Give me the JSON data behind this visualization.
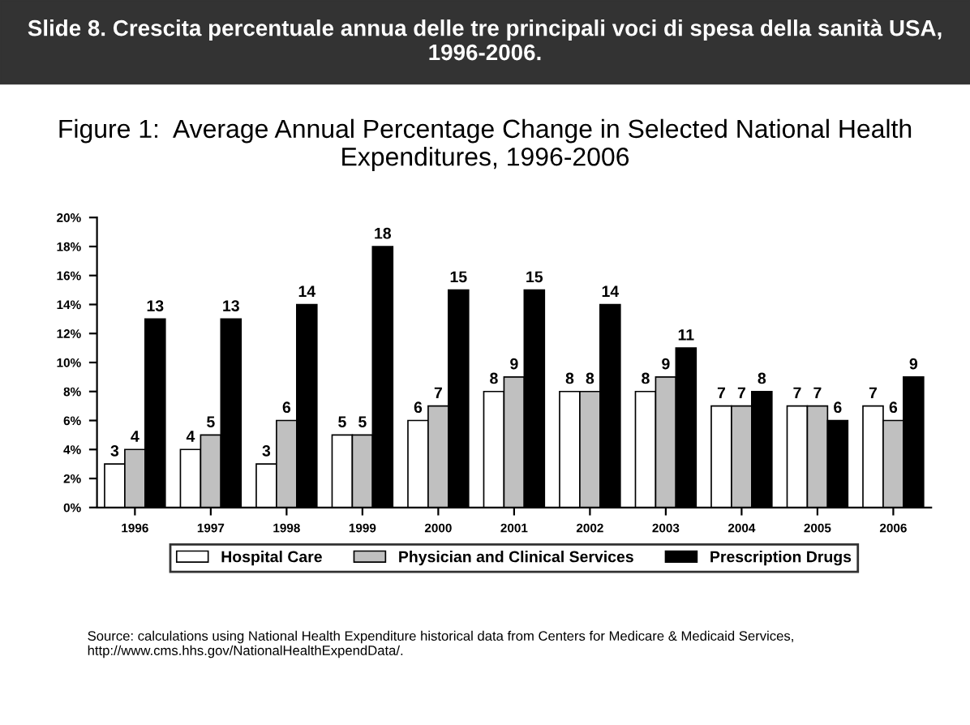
{
  "chart_data": {
    "type": "bar",
    "title": "Slide 8. Crescita percentuale annua delle tre principali voci di spesa della sanità USA, 1996-2006.",
    "subtitle": "Figure 1:  Average Annual Percentage Change in Selected National Health Expenditures, 1996-2006",
    "categories": [
      "1996",
      "1997",
      "1998",
      "1999",
      "2000",
      "2001",
      "2002",
      "2003",
      "2004",
      "2005",
      "2006"
    ],
    "series": [
      {
        "name": "Hospital Care",
        "color": "#ffffff",
        "values": [
          3,
          4,
          3,
          5,
          6,
          8,
          8,
          8,
          7,
          7,
          7
        ]
      },
      {
        "name": "Physician and Clinical Services",
        "color": "#c0c0c0",
        "values": [
          4,
          5,
          6,
          5,
          7,
          9,
          8,
          9,
          7,
          7,
          6
        ]
      },
      {
        "name": "Prescription Drugs",
        "color": "#000000",
        "values": [
          13,
          13,
          14,
          18,
          15,
          15,
          14,
          11,
          8,
          6,
          9
        ]
      }
    ],
    "ylim": [
      0,
      20
    ],
    "yticks": [
      {
        "value": 0,
        "label": "0%"
      },
      {
        "value": 2,
        "label": "2%"
      },
      {
        "value": 4,
        "label": "4%"
      },
      {
        "value": 6,
        "label": "6%"
      },
      {
        "value": 8,
        "label": "8%"
      },
      {
        "value": 10,
        "label": "10%"
      },
      {
        "value": 12,
        "label": "12%"
      },
      {
        "value": 14,
        "label": "14%"
      },
      {
        "value": 16,
        "label": "16%"
      },
      {
        "value": 18,
        "label": "18%"
      },
      {
        "value": 20,
        "label": "20%"
      }
    ],
    "data_labels": true,
    "grid": false,
    "legend": "bottom",
    "annotations": [
      "Source: calculations using National Health Expenditure historical data from Centers for Medicare & Medicaid Services, http://www.cms.hhs.gov/NationalHealthExpendData/."
    ]
  }
}
